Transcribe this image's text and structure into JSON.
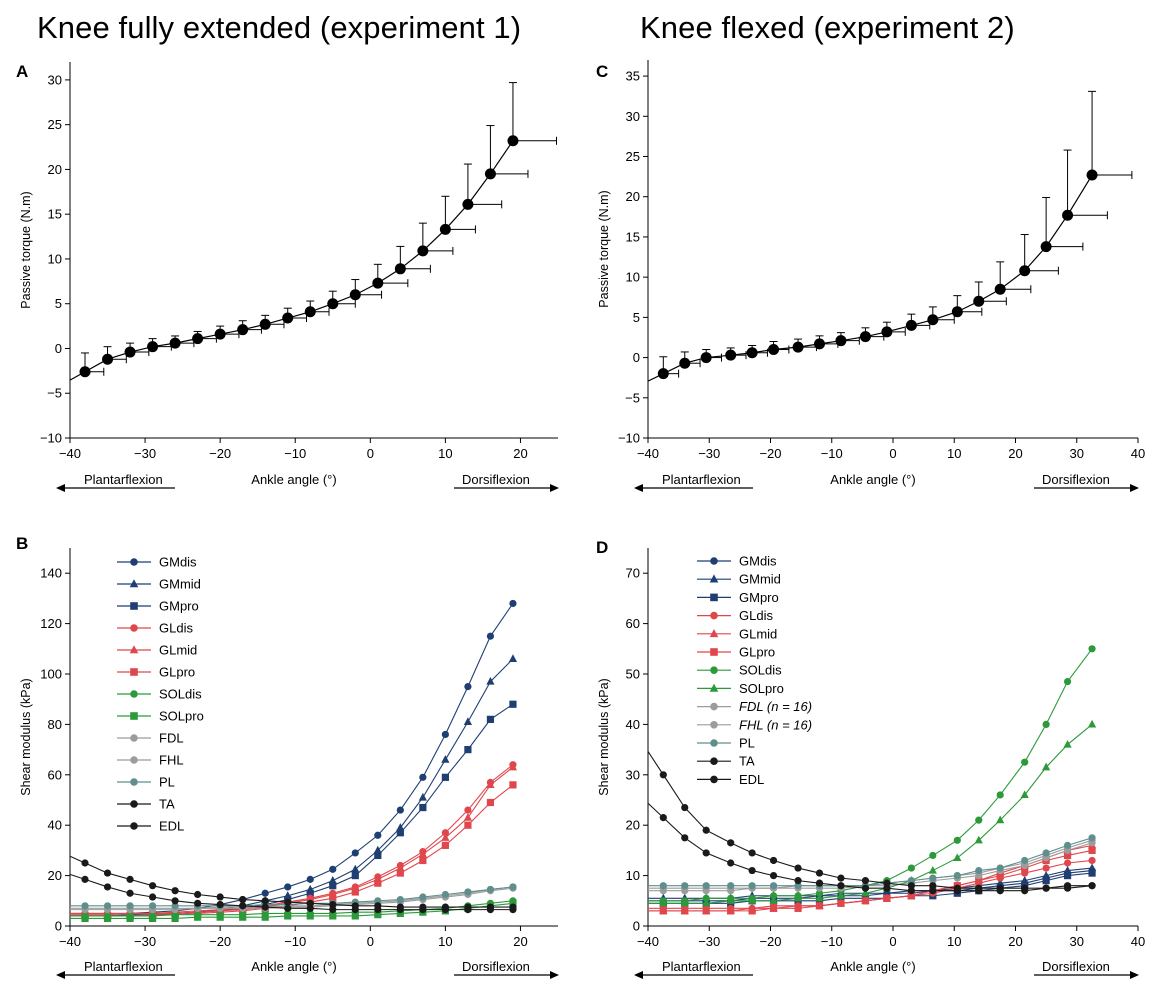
{
  "titles": {
    "left": "Knee fully extended (experiment 1)",
    "right": "Knee flexed (experiment 2)"
  },
  "panel_letters": [
    "A",
    "B",
    "C",
    "D"
  ],
  "direction_labels": {
    "left": "Plantarflexion",
    "center": "Ankle angle (°)",
    "right": "Dorsiflexion"
  },
  "colors": {
    "navy": "#1f3f73",
    "red": "#e0474c",
    "green": "#2c9a3a",
    "gray": "#9c9c9c",
    "teal": "#5f8f8c",
    "black": "#1a1a1a"
  },
  "chart_data": [
    {
      "panel": "A",
      "type": "line",
      "ylabel": "Passive torque (N.m)",
      "xlim": [
        -40,
        25
      ],
      "ylim": [
        -10,
        32
      ],
      "xticks": [
        -40,
        -30,
        -20,
        -10,
        0,
        10,
        20
      ],
      "yticks": [
        -10,
        -5,
        0,
        5,
        10,
        15,
        20,
        25,
        30
      ],
      "x": [
        -38,
        -35,
        -32,
        -29,
        -26,
        -23,
        -20,
        -17,
        -14,
        -11,
        -8,
        -5,
        -2,
        1,
        4,
        7,
        10,
        13,
        16,
        19
      ],
      "y": [
        -2.6,
        -1.2,
        -0.4,
        0.2,
        0.6,
        1.1,
        1.6,
        2.1,
        2.7,
        3.4,
        4.1,
        5.0,
        6.0,
        7.3,
        8.9,
        10.9,
        13.3,
        16.1,
        19.5,
        23.2
      ],
      "y_err": [
        2.1,
        1.4,
        1.0,
        0.9,
        0.8,
        0.8,
        0.9,
        1.0,
        1.0,
        1.1,
        1.2,
        1.4,
        1.7,
        2.1,
        2.5,
        3.1,
        3.7,
        4.5,
        5.4,
        6.5
      ],
      "x_err": [
        2.5,
        2.5,
        2.5,
        2.5,
        2.5,
        2.5,
        2.5,
        2.5,
        2.5,
        2.5,
        2.5,
        3.0,
        3.5,
        4.0,
        4.0,
        4.0,
        4.0,
        4.5,
        5.0,
        5.8
      ]
    },
    {
      "panel": "B",
      "type": "line",
      "ylabel": "Shear modulus (kPa)",
      "xlim": [
        -40,
        25
      ],
      "ylim": [
        0,
        150
      ],
      "xticks": [
        -40,
        -30,
        -20,
        -10,
        0,
        10,
        20
      ],
      "yticks": [
        0,
        20,
        40,
        60,
        80,
        100,
        120,
        140
      ],
      "x": [
        -38,
        -35,
        -32,
        -29,
        -26,
        -23,
        -20,
        -17,
        -14,
        -11,
        -8,
        -5,
        -2,
        1,
        4,
        7,
        10,
        13,
        16,
        19
      ],
      "series": [
        {
          "name": "GMdis",
          "color": "navy",
          "marker": "circle",
          "values": [
            5,
            5,
            5,
            5.5,
            6,
            7,
            8.5,
            10.5,
            13,
            15.5,
            18.5,
            22.5,
            29,
            36,
            46,
            59,
            76,
            95,
            115,
            128
          ]
        },
        {
          "name": "GMmid",
          "color": "navy",
          "marker": "triangle",
          "values": [
            4,
            4,
            4.5,
            4.5,
            5,
            5.5,
            6.5,
            8,
            10,
            12,
            14.5,
            18,
            22.5,
            30,
            39,
            51,
            66,
            81,
            97,
            106
          ]
        },
        {
          "name": "GMpro",
          "color": "navy",
          "marker": "square",
          "values": [
            4,
            4,
            4,
            4.5,
            5,
            5.5,
            6,
            7,
            8.5,
            10.5,
            13,
            16,
            20,
            28,
            37,
            47,
            59,
            70,
            82,
            88
          ]
        },
        {
          "name": "GLdis",
          "color": "red",
          "marker": "circle",
          "values": [
            5,
            5,
            5,
            5,
            5.5,
            6,
            6.5,
            7,
            8,
            9.5,
            11,
            13,
            15.5,
            19.5,
            24,
            29.5,
            37,
            46,
            57,
            64
          ]
        },
        {
          "name": "GLmid",
          "color": "red",
          "marker": "triangle",
          "values": [
            4.5,
            4.5,
            5,
            5,
            5,
            5.5,
            6,
            6.5,
            7.5,
            9,
            10.5,
            12.5,
            15,
            18.5,
            23,
            28.5,
            35,
            43,
            56,
            63
          ]
        },
        {
          "name": "GLpro",
          "color": "red",
          "marker": "square",
          "values": [
            4,
            4,
            4,
            4.5,
            4.5,
            5,
            5.5,
            6,
            7,
            8,
            9.5,
            11,
            13.5,
            17,
            21,
            26,
            32,
            40,
            49,
            56
          ]
        },
        {
          "name": "SOLdis",
          "color": "green",
          "marker": "circle",
          "values": [
            4,
            4,
            4,
            4,
            4.5,
            4.5,
            4.5,
            4.5,
            5,
            5,
            5,
            5,
            5.5,
            5.5,
            6,
            6.5,
            7,
            8,
            9,
            10
          ]
        },
        {
          "name": "SOLpro",
          "color": "green",
          "marker": "square",
          "values": [
            3,
            3,
            3,
            3,
            3,
            3.5,
            3.5,
            3.5,
            3.5,
            4,
            4,
            4,
            4,
            4.5,
            5,
            5.5,
            6,
            7,
            8,
            9
          ]
        },
        {
          "name": "FDL",
          "color": "gray",
          "marker": "circle",
          "values": [
            6.5,
            6.5,
            6.5,
            6.5,
            6.5,
            7,
            7,
            7,
            7,
            7.5,
            7.5,
            8,
            8.5,
            9,
            9.5,
            10.5,
            11.5,
            12.5,
            14,
            15
          ]
        },
        {
          "name": "FHL",
          "color": "gray",
          "marker": "circle",
          "values": [
            7,
            7,
            7,
            7,
            7,
            7,
            7.5,
            7.5,
            7.5,
            8,
            8,
            8.5,
            9,
            9.5,
            10,
            11,
            12,
            13,
            14.5,
            15.5
          ]
        },
        {
          "name": "PL",
          "color": "teal",
          "marker": "circle",
          "values": [
            8,
            8,
            8,
            8,
            8,
            8,
            8,
            8,
            8.5,
            8.5,
            9,
            9,
            9.5,
            10,
            10.5,
            11.5,
            12.5,
            13.5,
            14.5,
            15.5
          ]
        },
        {
          "name": "TA",
          "color": "black",
          "marker": "circle",
          "values": [
            25,
            21,
            18.5,
            16,
            14,
            12.5,
            11.5,
            10.5,
            10,
            9.5,
            9,
            8.5,
            8,
            8,
            7.5,
            7.5,
            7.5,
            7.5,
            7.5,
            7.5
          ]
        },
        {
          "name": "EDL",
          "color": "black",
          "marker": "circle",
          "values": [
            18.5,
            15.5,
            13,
            11.5,
            10,
            9,
            8.5,
            8,
            7.5,
            7,
            7,
            6.5,
            6.5,
            6.5,
            6.5,
            6.5,
            6.5,
            6.5,
            6.5,
            6.5
          ]
        }
      ]
    },
    {
      "panel": "C",
      "type": "line",
      "ylabel": "Passive torque (N.m)",
      "xlim": [
        -40,
        40
      ],
      "ylim": [
        -10,
        37
      ],
      "xticks": [
        -40,
        -30,
        -20,
        -10,
        0,
        10,
        20,
        30,
        40
      ],
      "yticks": [
        -10,
        -5,
        0,
        5,
        10,
        15,
        20,
        25,
        30,
        35
      ],
      "x": [
        -37.5,
        -34,
        -30.5,
        -26.5,
        -23,
        -19.5,
        -15.5,
        -12,
        -8.5,
        -4.5,
        -1,
        3,
        6.5,
        10.5,
        14,
        17.5,
        21.5,
        25,
        28.5,
        32.5
      ],
      "y": [
        -2,
        -0.7,
        0,
        0.3,
        0.6,
        1.0,
        1.3,
        1.7,
        2.1,
        2.6,
        3.2,
        4.0,
        4.7,
        5.7,
        7.0,
        8.5,
        10.8,
        13.8,
        17.7,
        22.7
      ],
      "y_err": [
        2.1,
        1.4,
        1.0,
        0.9,
        0.9,
        1.0,
        1.0,
        1.0,
        1.0,
        1.1,
        1.2,
        1.4,
        1.6,
        2.0,
        2.4,
        3.4,
        4.5,
        6.1,
        8.1,
        10.4
      ],
      "x_err": [
        2.5,
        2.5,
        2.5,
        2.5,
        2.5,
        2.5,
        3.0,
        3.0,
        3.0,
        3.0,
        3.0,
        3.0,
        3.5,
        4.0,
        4.5,
        5.0,
        5.5,
        6.0,
        6.5,
        6.5
      ]
    },
    {
      "panel": "D",
      "type": "line",
      "ylabel": "Shear modulus (kPa)",
      "xlim": [
        -40,
        40
      ],
      "ylim": [
        0,
        75
      ],
      "xticks": [
        -40,
        -30,
        -20,
        -10,
        0,
        10,
        20,
        30,
        40
      ],
      "yticks": [
        0,
        10,
        20,
        30,
        40,
        50,
        60,
        70
      ],
      "x": [
        -37.5,
        -34,
        -30.5,
        -26.5,
        -23,
        -19.5,
        -15.5,
        -12,
        -8.5,
        -4.5,
        -1,
        3,
        6.5,
        10.5,
        14,
        17.5,
        21.5,
        25,
        28.5,
        32.5
      ],
      "series": [
        {
          "name": "GMdis",
          "color": "navy",
          "marker": "circle",
          "values": [
            5,
            5,
            5,
            5,
            5.5,
            5.5,
            5.5,
            6,
            6,
            6,
            6.5,
            6.5,
            7,
            7,
            7.5,
            8,
            8.5,
            9.5,
            10.5,
            11
          ]
        },
        {
          "name": "GMmid",
          "color": "navy",
          "marker": "triangle",
          "values": [
            5.5,
            5.5,
            5.5,
            5.5,
            6,
            6,
            6,
            6,
            6.5,
            6.5,
            6.5,
            7,
            7,
            7.5,
            8,
            8.5,
            9,
            10,
            11,
            11.5
          ]
        },
        {
          "name": "GMpro",
          "color": "navy",
          "marker": "square",
          "values": [
            4.5,
            4.5,
            4.5,
            4.5,
            5,
            5,
            5,
            5,
            5.5,
            5.5,
            5.5,
            6,
            6,
            6.5,
            7,
            7.5,
            8,
            9,
            10,
            10.5
          ]
        },
        {
          "name": "GLdis",
          "color": "red",
          "marker": "circle",
          "values": [
            3.5,
            3.5,
            3.5,
            3.5,
            3.5,
            4,
            4,
            4,
            4.5,
            5,
            5.5,
            6,
            6.5,
            7.5,
            8.5,
            9.5,
            10.5,
            11.5,
            12.5,
            13
          ]
        },
        {
          "name": "GLmid",
          "color": "red",
          "marker": "triangle",
          "values": [
            3,
            3,
            3,
            3,
            3.5,
            3.5,
            4,
            4,
            4.5,
            5,
            5.5,
            6,
            7,
            8,
            9,
            10.5,
            12,
            13.5,
            15,
            16
          ]
        },
        {
          "name": "GLpro",
          "color": "red",
          "marker": "square",
          "values": [
            3,
            3,
            3,
            3,
            3,
            3.5,
            3.5,
            4,
            4.5,
            5,
            5.5,
            6,
            7,
            8,
            9,
            10,
            11.5,
            13,
            14,
            15
          ]
        },
        {
          "name": "SOLdis",
          "color": "green",
          "marker": "circle",
          "values": [
            5,
            5,
            5.5,
            5.5,
            5.5,
            6,
            6,
            6.5,
            7,
            8,
            9,
            11.5,
            14,
            17,
            21,
            26,
            32.5,
            40,
            48.5,
            55
          ]
        },
        {
          "name": "SOLpro",
          "color": "green",
          "marker": "triangle",
          "values": [
            4.5,
            4.5,
            4.5,
            5,
            5,
            5,
            5.5,
            5.5,
            6,
            6.5,
            7.5,
            9,
            11,
            13.5,
            17,
            21,
            26,
            31.5,
            36,
            40
          ]
        },
        {
          "name": "FDL (n = 16)",
          "color": "gray",
          "marker": "circle",
          "values": [
            7,
            7,
            7,
            7,
            7.5,
            7.5,
            7.5,
            7.5,
            7.5,
            8,
            8,
            8.5,
            9,
            9.5,
            10,
            11,
            12,
            13.5,
            15,
            16.5
          ]
        },
        {
          "name": "FHL (n = 16)",
          "color": "gray",
          "marker": "circle",
          "values": [
            7.5,
            7.5,
            7.5,
            7.5,
            7.5,
            7.5,
            8,
            8,
            8,
            8,
            8.5,
            9,
            9.5,
            10,
            10.5,
            11.5,
            12.5,
            14,
            15.5,
            17
          ]
        },
        {
          "name": "PL",
          "color": "teal",
          "marker": "circle",
          "values": [
            8,
            8,
            8,
            8,
            8,
            8,
            8,
            8,
            8,
            8,
            8.5,
            9,
            9.5,
            10,
            11,
            11.5,
            13,
            14.5,
            16,
            17.5
          ]
        },
        {
          "name": "TA",
          "color": "black",
          "marker": "circle",
          "values": [
            30,
            23.5,
            19,
            16.5,
            14.5,
            13,
            11.5,
            10.5,
            9.5,
            9,
            8.5,
            8,
            8,
            7.5,
            7.5,
            7.5,
            7.5,
            7.5,
            8,
            8
          ]
        },
        {
          "name": "EDL",
          "color": "black",
          "marker": "circle",
          "values": [
            21.5,
            17.5,
            14.5,
            12.5,
            11,
            10,
            9,
            8.5,
            8,
            7.5,
            7.5,
            7,
            7,
            7,
            7,
            7,
            7,
            7.5,
            7.5,
            8
          ]
        }
      ]
    }
  ]
}
